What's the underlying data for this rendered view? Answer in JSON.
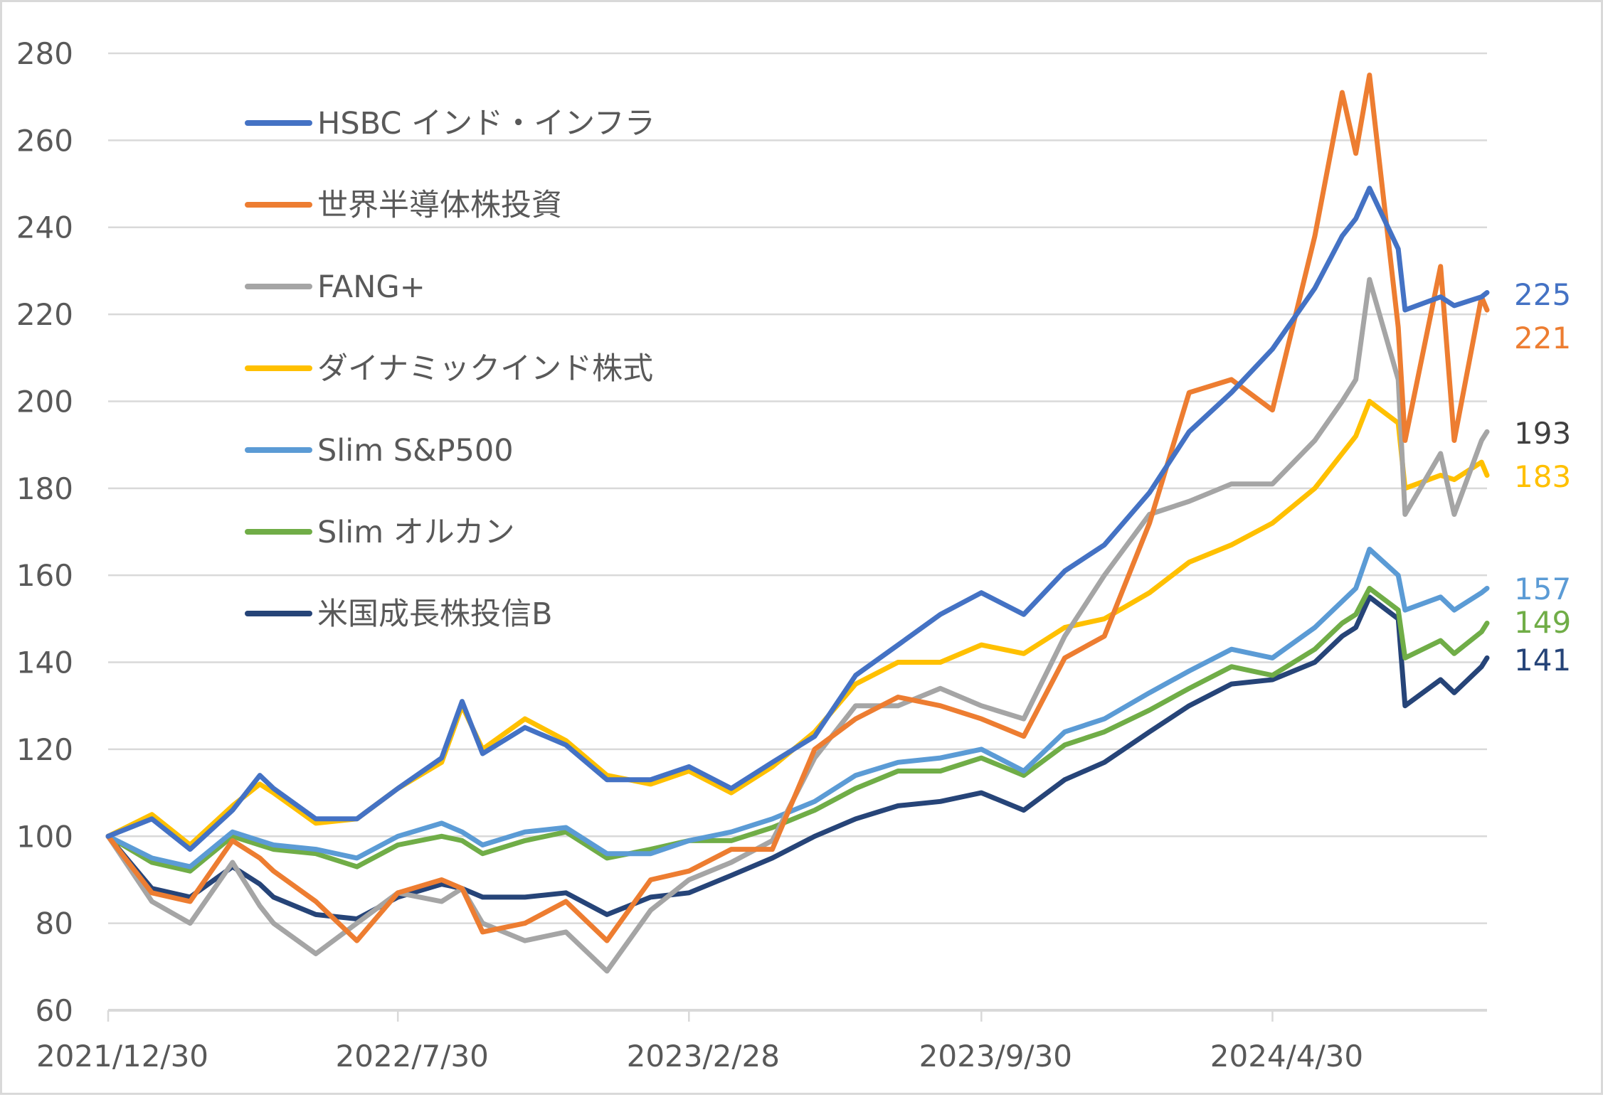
{
  "chart_data": {
    "type": "line",
    "title": "",
    "xlabel": "",
    "ylabel": "",
    "ylim": [
      60,
      280
    ],
    "yticks": [
      60,
      80,
      100,
      120,
      140,
      160,
      180,
      200,
      220,
      240,
      260,
      280
    ],
    "xlim": [
      "2021-12-30",
      "2024-10-04"
    ],
    "xtick_labels": [
      "2021/12/30",
      "2022/7/30",
      "2023/2/28",
      "2023/9/30",
      "2024/4/30"
    ],
    "xtick_dates": [
      "2021-12-30",
      "2022-07-30",
      "2023-02-28",
      "2023-09-30",
      "2024-04-30"
    ],
    "grid": "horizontal",
    "legend_placement": "top-left",
    "x": [
      "2021-12-30",
      "2022-01-31",
      "2022-02-28",
      "2022-03-31",
      "2022-04-20",
      "2022-04-30",
      "2022-05-31",
      "2022-06-30",
      "2022-07-30",
      "2022-08-31",
      "2022-09-15",
      "2022-09-30",
      "2022-10-31",
      "2022-11-30",
      "2022-12-30",
      "2023-01-31",
      "2023-02-28",
      "2023-03-31",
      "2023-04-30",
      "2023-05-31",
      "2023-06-30",
      "2023-07-31",
      "2023-08-31",
      "2023-09-30",
      "2023-10-31",
      "2023-11-30",
      "2023-12-29",
      "2024-01-31",
      "2024-02-29",
      "2024-03-31",
      "2024-04-30",
      "2024-05-31",
      "2024-06-20",
      "2024-06-30",
      "2024-07-10",
      "2024-07-31",
      "2024-08-05",
      "2024-08-31",
      "2024-09-10",
      "2024-09-30",
      "2024-10-04"
    ],
    "series": [
      {
        "name": "HSBC インド・インフラ",
        "color": "#4472C4",
        "end_label": "225",
        "values": [
          100,
          104,
          97,
          106,
          114,
          111,
          104,
          104,
          111,
          118,
          131,
          119,
          125,
          121,
          113,
          113,
          116,
          111,
          117,
          123,
          137,
          144,
          151,
          156,
          151,
          161,
          167,
          179,
          193,
          202,
          212,
          226,
          238,
          242,
          249,
          235,
          221,
          224,
          222,
          224,
          225
        ]
      },
      {
        "name": "世界半導体株投資",
        "color": "#ED7D31",
        "end_label": "221",
        "values": [
          100,
          87,
          85,
          99,
          95,
          92,
          85,
          76,
          87,
          90,
          88,
          78,
          80,
          85,
          76,
          90,
          92,
          97,
          97,
          120,
          127,
          132,
          130,
          127,
          123,
          141,
          146,
          172,
          202,
          205,
          198,
          238,
          271,
          257,
          275,
          217,
          191,
          231,
          191,
          224,
          221
        ]
      },
      {
        "name": "FANG+",
        "color": "#A5A5A5",
        "end_label": "193",
        "values": [
          100,
          85,
          80,
          94,
          84,
          80,
          73,
          80,
          87,
          85,
          88,
          80,
          76,
          78,
          69,
          83,
          90,
          94,
          99,
          118,
          130,
          130,
          134,
          130,
          127,
          146,
          160,
          174,
          177,
          181,
          181,
          191,
          200,
          205,
          228,
          205,
          174,
          188,
          174,
          191,
          193
        ]
      },
      {
        "name": "ダイナミックインド株式",
        "color": "#FFC000",
        "end_label": "183",
        "values": [
          100,
          105,
          98,
          107,
          112,
          110,
          103,
          104,
          111,
          117,
          130,
          120,
          127,
          122,
          114,
          112,
          115,
          110,
          116,
          124,
          135,
          140,
          140,
          144,
          142,
          148,
          150,
          156,
          163,
          167,
          172,
          180,
          188,
          192,
          200,
          195,
          180,
          183,
          182,
          186,
          183
        ]
      },
      {
        "name": "Slim S&P500",
        "color": "#5B9BD5",
        "end_label": "157",
        "values": [
          100,
          95,
          93,
          101,
          99,
          98,
          97,
          95,
          100,
          103,
          101,
          98,
          101,
          102,
          96,
          96,
          99,
          101,
          104,
          108,
          114,
          117,
          118,
          120,
          115,
          124,
          127,
          133,
          138,
          143,
          141,
          148,
          154,
          157,
          166,
          160,
          152,
          155,
          152,
          156,
          157
        ]
      },
      {
        "name": "Slim オルカン",
        "color": "#70AD47",
        "end_label": "149",
        "values": [
          100,
          94,
          92,
          100,
          98,
          97,
          96,
          93,
          98,
          100,
          99,
          96,
          99,
          101,
          95,
          97,
          99,
          99,
          102,
          106,
          111,
          115,
          115,
          118,
          114,
          121,
          124,
          129,
          134,
          139,
          137,
          143,
          149,
          151,
          157,
          152,
          141,
          145,
          142,
          147,
          149
        ]
      },
      {
        "name": "米国成長株投信B",
        "color": "#264478",
        "end_label": "141",
        "values": [
          100,
          88,
          86,
          93,
          89,
          86,
          82,
          81,
          86,
          89,
          88,
          86,
          86,
          87,
          82,
          86,
          87,
          91,
          95,
          100,
          104,
          107,
          108,
          110,
          106,
          113,
          117,
          124,
          130,
          135,
          136,
          140,
          146,
          148,
          155,
          150,
          130,
          136,
          133,
          139,
          141
        ]
      }
    ]
  }
}
